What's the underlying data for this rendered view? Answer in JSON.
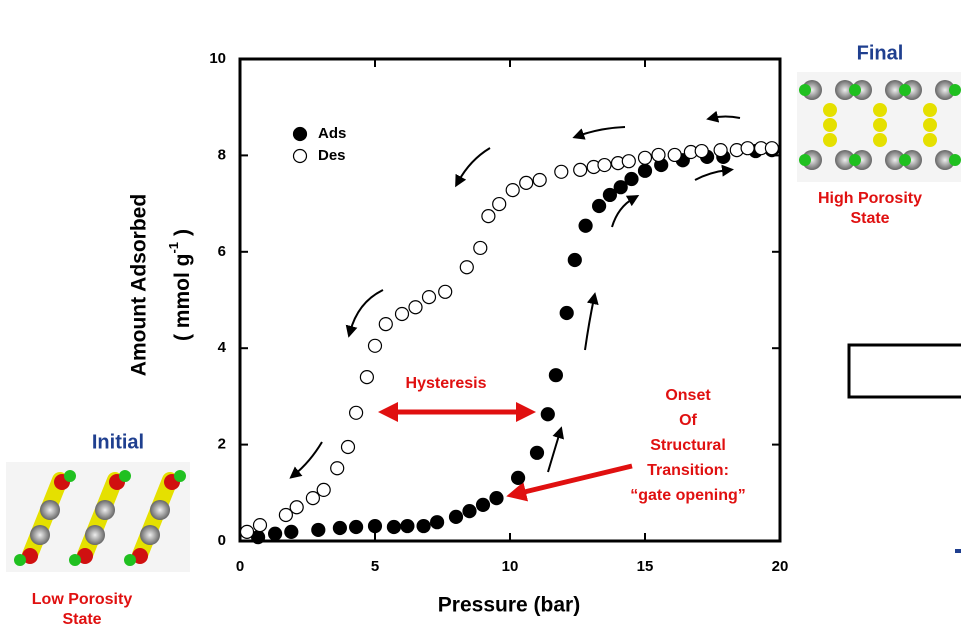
{
  "chart_data": {
    "type": "scatter",
    "xlabel": "Pressure (bar)",
    "ylabel": "Amount Adsorbed",
    "ylabel_unit": {
      "text": "( mmol g",
      "sup": "-1",
      "end": ")"
    },
    "xlim": [
      0,
      20
    ],
    "ylim": [
      0,
      10
    ],
    "xticks": [
      0,
      5,
      10,
      15,
      20
    ],
    "yticks": [
      0,
      2,
      4,
      6,
      8,
      10
    ],
    "series": [
      {
        "name": "Ads",
        "color": "#000000",
        "filled": true,
        "x": [
          0.67,
          1.3,
          1.9,
          2.9,
          3.7,
          4.3,
          5.0,
          5.7,
          6.2,
          6.8,
          7.3,
          8.0,
          8.5,
          9.0,
          9.5,
          10.3,
          11.0,
          11.4,
          11.7,
          12.1,
          12.4,
          12.8,
          13.3,
          13.7,
          14.1,
          14.5,
          15.0,
          15.6,
          16.4,
          17.3,
          17.9,
          19.1,
          19.7
        ],
        "y": [
          0.08,
          0.15,
          0.19,
          0.23,
          0.27,
          0.29,
          0.31,
          0.29,
          0.31,
          0.31,
          0.39,
          0.5,
          0.62,
          0.75,
          0.89,
          1.31,
          1.83,
          2.63,
          3.44,
          4.73,
          5.83,
          6.54,
          6.95,
          7.18,
          7.34,
          7.51,
          7.68,
          7.8,
          7.9,
          7.97,
          7.97,
          8.09,
          8.11
        ]
      },
      {
        "name": "Des",
        "color": "#000000",
        "filled": false,
        "x": [
          0.26,
          0.74,
          1.7,
          2.1,
          2.7,
          3.1,
          3.6,
          4.0,
          4.3,
          4.7,
          5.0,
          5.4,
          6.0,
          6.5,
          7.0,
          7.6,
          8.4,
          8.9,
          9.2,
          9.6,
          10.1,
          10.6,
          11.1,
          11.9,
          12.6,
          13.1,
          13.5,
          14.0,
          14.4,
          15.0,
          15.5,
          16.1,
          16.7,
          17.1,
          17.8,
          18.4,
          18.8,
          19.3,
          19.7
        ],
        "y": [
          0.19,
          0.33,
          0.54,
          0.7,
          0.89,
          1.06,
          1.51,
          1.95,
          2.66,
          3.4,
          4.05,
          4.5,
          4.71,
          4.85,
          5.06,
          5.17,
          5.68,
          6.08,
          6.74,
          6.99,
          7.28,
          7.43,
          7.49,
          7.66,
          7.7,
          7.76,
          7.8,
          7.84,
          7.88,
          7.95,
          8.01,
          8.01,
          8.07,
          8.09,
          8.11,
          8.11,
          8.15,
          8.15,
          8.15
        ]
      }
    ],
    "annotations": {
      "hysteresis": "Hysteresis",
      "onset": [
        "Onset",
        "Of",
        "Structural",
        "Transition:",
        "“gate opening”"
      ],
      "initial": "Initial",
      "initial_state": [
        "Low Porosity",
        "State"
      ],
      "final": "Final",
      "final_state": [
        "High Porosity",
        "State"
      ]
    }
  }
}
